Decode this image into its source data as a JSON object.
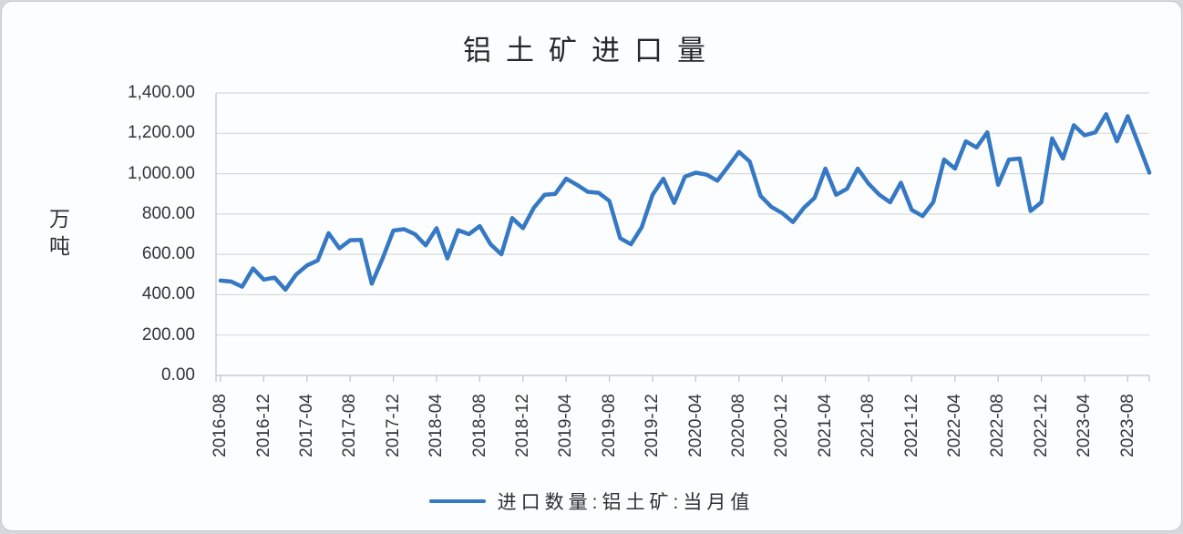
{
  "page": {
    "background": "#d5d8dc",
    "card_background": "#fcfdfe"
  },
  "legend": {
    "label": "进口数量:铝土矿:当月值"
  },
  "chart_data": {
    "type": "line",
    "title": "铝土矿进口量",
    "ylabel": "万吨",
    "xlabel": "",
    "ylim": [
      0,
      1400
    ],
    "grid": true,
    "legend_position": "bottom",
    "line_color": "#3578c3",
    "grid_color": "#d9d9d9",
    "axis_color": "#bfc3c9",
    "text_color": "#33333b",
    "y_tick_labels": [
      "1,400.00",
      "1,200.00",
      "1,000.00",
      "800.00",
      "600.00",
      "400.00",
      "200.00",
      "0.00"
    ],
    "x_tick_labels": [
      "2016-08",
      "2016-12",
      "2017-04",
      "2017-08",
      "2017-12",
      "2018-04",
      "2018-08",
      "2018-12",
      "2019-04",
      "2019-08",
      "2019-12",
      "2020-04",
      "2020-08",
      "2020-12",
      "2021-04",
      "2021-08",
      "2021-12",
      "2022-04",
      "2022-08",
      "2022-12",
      "2023-04",
      "2023-08"
    ],
    "series": [
      {
        "name": "进口数量:铝土矿:当月值",
        "start_month": "2016-08",
        "end_month": "2023-10",
        "frequency": "monthly",
        "values": [
          470,
          465,
          440,
          530,
          475,
          485,
          425,
          500,
          545,
          570,
          705,
          630,
          670,
          672,
          455,
          580,
          718,
          725,
          700,
          645,
          730,
          580,
          720,
          700,
          740,
          650,
          600,
          780,
          730,
          830,
          895,
          900,
          975,
          945,
          910,
          905,
          865,
          680,
          650,
          735,
          895,
          975,
          855,
          985,
          1005,
          995,
          965,
          1035,
          1108,
          1060,
          890,
          835,
          805,
          760,
          830,
          880,
          1025,
          895,
          925,
          1025,
          950,
          895,
          858,
          955,
          820,
          790,
          860,
          1070,
          1025,
          1160,
          1130,
          1205,
          945,
          1070,
          1075,
          815,
          858,
          1175,
          1075,
          1240,
          1190,
          1205,
          1295,
          1160,
          1285,
          1145,
          1005
        ]
      }
    ]
  }
}
